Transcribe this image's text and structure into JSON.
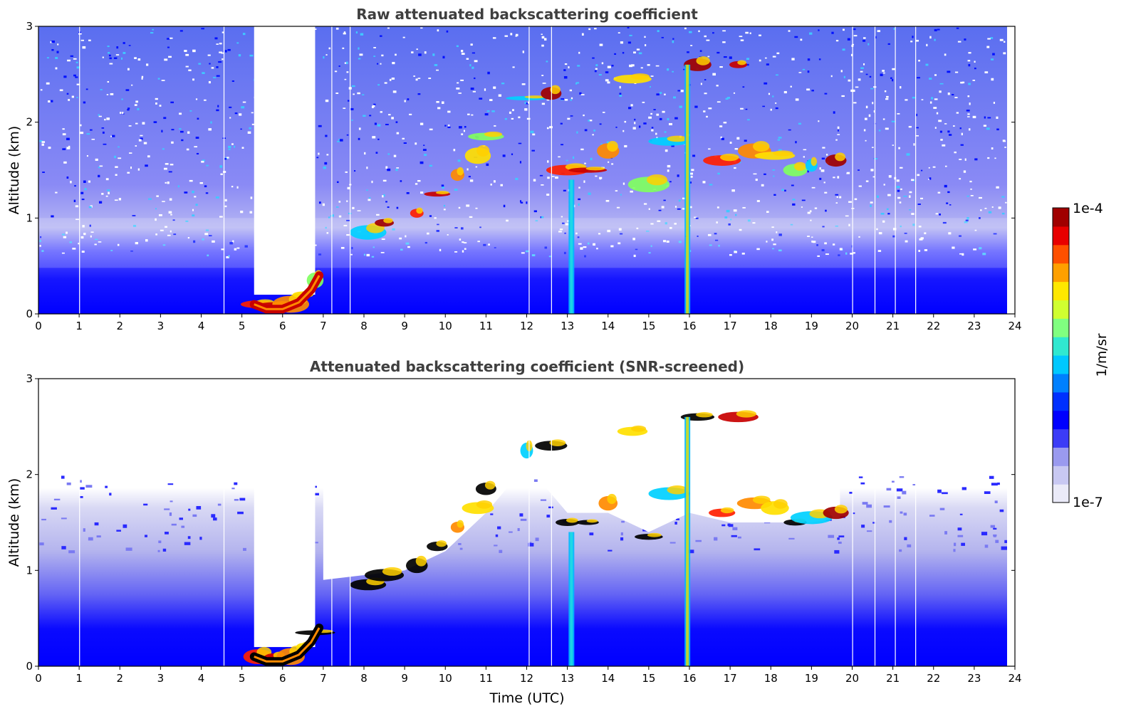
{
  "chart_data": [
    {
      "type": "heatmap",
      "title": "Raw attenuated backscattering coefficient",
      "xlabel": "",
      "ylabel": "Altitude (km)",
      "xlim": [
        0,
        24
      ],
      "ylim": [
        0,
        3
      ],
      "x_ticks": [
        "0",
        "1",
        "2",
        "3",
        "4",
        "5",
        "6",
        "7",
        "8",
        "9",
        "10",
        "11",
        "12",
        "13",
        "14",
        "15",
        "16",
        "17",
        "18",
        "19",
        "20",
        "21",
        "22",
        "23",
        "24"
      ],
      "y_ticks": [
        "0",
        "1",
        "2",
        "3"
      ],
      "grid": false,
      "features": {
        "noise_floor_altitude_km": 0.4,
        "gap_window_hours": [
          5.3,
          6.8
        ],
        "cloud_base_points": [
          [
            5.4,
            0.1
          ],
          [
            5.8,
            0.08
          ],
          [
            6.2,
            0.1
          ],
          [
            6.5,
            0.2
          ],
          [
            6.8,
            0.35
          ],
          [
            8.1,
            0.85
          ],
          [
            8.5,
            0.95
          ],
          [
            9.3,
            1.05
          ],
          [
            9.8,
            1.25
          ],
          [
            10.3,
            1.45
          ],
          [
            10.8,
            1.65
          ],
          [
            11.0,
            1.85
          ],
          [
            12.0,
            2.25
          ],
          [
            12.6,
            2.3
          ],
          [
            13.0,
            1.5
          ],
          [
            13.5,
            1.5
          ],
          [
            14.0,
            1.7
          ],
          [
            14.6,
            2.45
          ],
          [
            15.0,
            1.35
          ],
          [
            15.5,
            1.8
          ],
          [
            16.2,
            2.6
          ],
          [
            16.8,
            1.6
          ],
          [
            17.2,
            2.6
          ],
          [
            17.6,
            1.7
          ],
          [
            18.1,
            1.65
          ],
          [
            18.6,
            1.5
          ],
          [
            19.0,
            1.55
          ],
          [
            19.6,
            1.6
          ]
        ],
        "precipitation_shafts_hours": [
          13.1,
          15.95
        ]
      }
    },
    {
      "type": "heatmap",
      "title": "Attenuated backscattering coefficient (SNR-screened)",
      "xlabel": "Time (UTC)",
      "ylabel": "Altitude (km)",
      "xlim": [
        0,
        24
      ],
      "ylim": [
        0,
        3
      ],
      "x_ticks": [
        "0",
        "1",
        "2",
        "3",
        "4",
        "5",
        "6",
        "7",
        "8",
        "9",
        "10",
        "11",
        "12",
        "13",
        "14",
        "15",
        "16",
        "17",
        "18",
        "19",
        "20",
        "21",
        "22",
        "23",
        "24"
      ],
      "y_ticks": [
        "0",
        "1",
        "2",
        "3"
      ],
      "grid": false
    }
  ],
  "colorbar": {
    "label": "1/m/sr",
    "max_label": "1e-4",
    "min_label": "1e-7",
    "colors": [
      "#eaeaf8",
      "#c8c8f2",
      "#9a9aef",
      "#3c3cf6",
      "#0000ff",
      "#0030ff",
      "#0080ff",
      "#00c8ff",
      "#30e8d0",
      "#80ff80",
      "#d0ff30",
      "#ffe800",
      "#ffa000",
      "#ff5000",
      "#e80000",
      "#a00000"
    ]
  }
}
